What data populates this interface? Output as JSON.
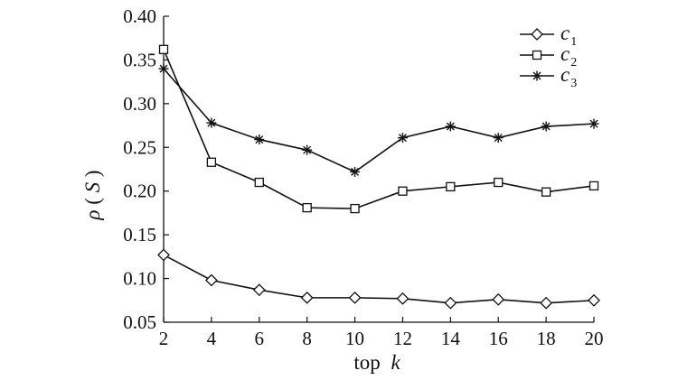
{
  "chart_data": {
    "type": "line",
    "title": "",
    "xlabel_main": "top",
    "xlabel_var": "k",
    "ylabel_var": "ρ",
    "ylabel_arg": "S",
    "x": [
      2,
      4,
      6,
      8,
      10,
      12,
      14,
      16,
      18,
      20
    ],
    "xlim": [
      2,
      20
    ],
    "ylim": [
      0.05,
      0.4
    ],
    "xticks": [
      "2",
      "4",
      "6",
      "8",
      "10",
      "12",
      "14",
      "16",
      "18",
      "20"
    ],
    "yticks": [
      "0.05",
      "0.10",
      "0.15",
      "0.20",
      "0.25",
      "0.30",
      "0.35",
      "0.40"
    ],
    "grid": false,
    "legend_position": "top-right",
    "series": [
      {
        "name": "c",
        "sub": "1",
        "marker": "diamond",
        "values": [
          0.127,
          0.098,
          0.087,
          0.078,
          0.078,
          0.077,
          0.072,
          0.076,
          0.072,
          0.075
        ]
      },
      {
        "name": "c",
        "sub": "2",
        "marker": "square",
        "values": [
          0.362,
          0.233,
          0.21,
          0.181,
          0.18,
          0.2,
          0.205,
          0.21,
          0.199,
          0.206
        ]
      },
      {
        "name": "c",
        "sub": "3",
        "marker": "asterisk",
        "values": [
          0.34,
          0.278,
          0.259,
          0.247,
          0.222,
          0.261,
          0.274,
          0.261,
          0.274,
          0.277
        ]
      }
    ]
  }
}
